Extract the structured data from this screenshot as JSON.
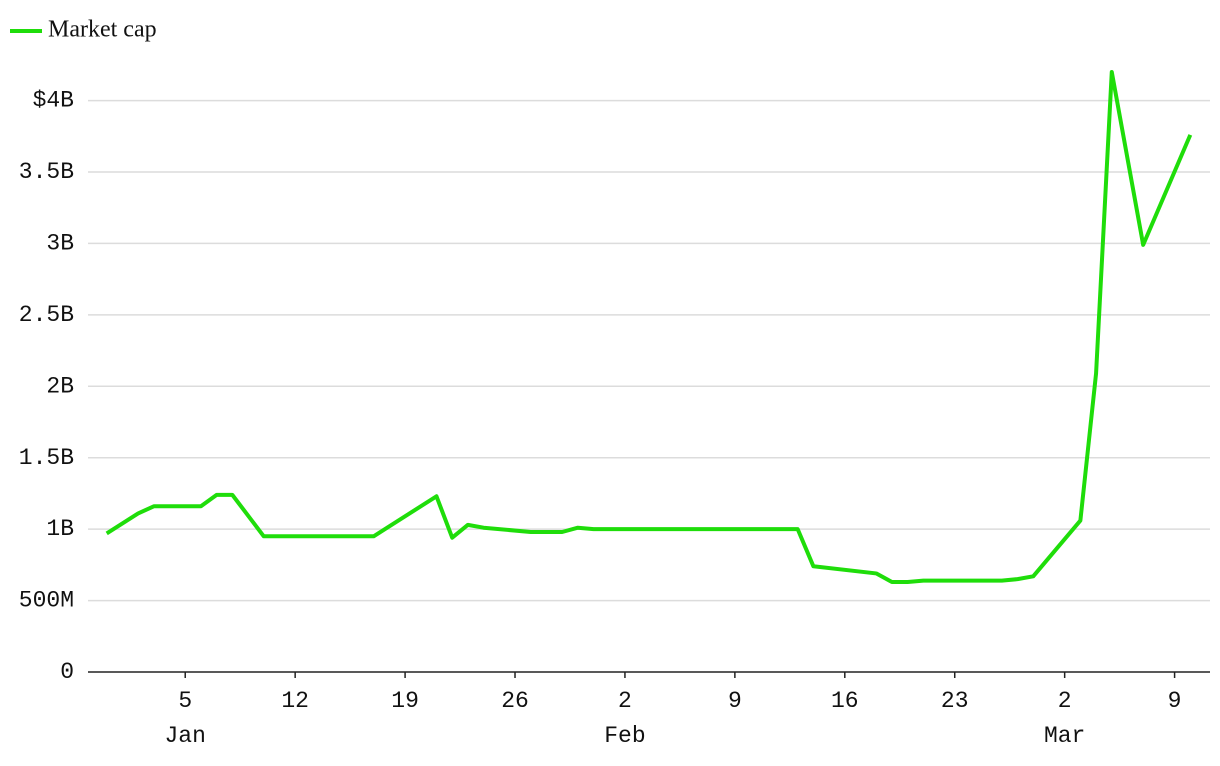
{
  "chart_data": {
    "type": "line",
    "x": [
      "Dec 31",
      "Jan 2",
      "Jan 3",
      "Jan 6",
      "Jan 7",
      "Jan 8",
      "Jan 10",
      "Jan 17",
      "Jan 21",
      "Jan 22",
      "Jan 23",
      "Jan 24",
      "Jan 27",
      "Jan 29",
      "Jan 30",
      "Jan 31",
      "Feb 13",
      "Feb 14",
      "Feb 18",
      "Feb 19",
      "Feb 20",
      "Feb 21",
      "Feb 26",
      "Feb 27",
      "Feb 28",
      "Mar 3",
      "Mar 4",
      "Mar 5",
      "Mar 7",
      "Mar 10"
    ],
    "series": [
      {
        "name": "Market cap",
        "color": "#1fdd0a",
        "values": [
          970000000,
          1110000000,
          1160000000,
          1160000000,
          1240000000,
          1240000000,
          950000000,
          950000000,
          1230000000,
          940000000,
          1030000000,
          1010000000,
          980000000,
          980000000,
          1010000000,
          1000000000,
          1000000000,
          740000000,
          690000000,
          630000000,
          630000000,
          640000000,
          640000000,
          650000000,
          670000000,
          1060000000,
          2090000000,
          4200000000,
          2990000000,
          3760000000
        ]
      }
    ],
    "xlim": [
      "Dec 30",
      "Mar 11"
    ],
    "xticks": [
      {
        "value": "Jan 5",
        "label": "5"
      },
      {
        "value": "Jan 12",
        "label": "12"
      },
      {
        "value": "Jan 19",
        "label": "19"
      },
      {
        "value": "Jan 26",
        "label": "26"
      },
      {
        "value": "Feb 2",
        "label": "2"
      },
      {
        "value": "Feb 9",
        "label": "9"
      },
      {
        "value": "Feb 16",
        "label": "16"
      },
      {
        "value": "Feb 23",
        "label": "23"
      },
      {
        "value": "Mar 2",
        "label": "2"
      },
      {
        "value": "Mar 9",
        "label": "9"
      }
    ],
    "month_labels": [
      {
        "value": "Jan 5",
        "label": "Jan"
      },
      {
        "value": "Feb 2",
        "label": "Feb"
      },
      {
        "value": "Mar 2",
        "label": "Mar"
      }
    ],
    "ylim": [
      0,
      4200000000
    ],
    "yticks": [
      0,
      {
        "value": 500000000,
        "label": "500M"
      },
      {
        "value": 1000000000,
        "label": "1B"
      },
      {
        "value": 1500000000,
        "label": "1.5B"
      },
      {
        "value": 2000000000,
        "label": "2B"
      },
      {
        "value": 2500000000,
        "label": "2.5B"
      },
      {
        "value": 3000000000,
        "label": "3B"
      },
      {
        "value": 3500000000,
        "label": "3.5B"
      },
      {
        "value": 4000000000,
        "label": "$4B"
      }
    ],
    "grid": true
  }
}
